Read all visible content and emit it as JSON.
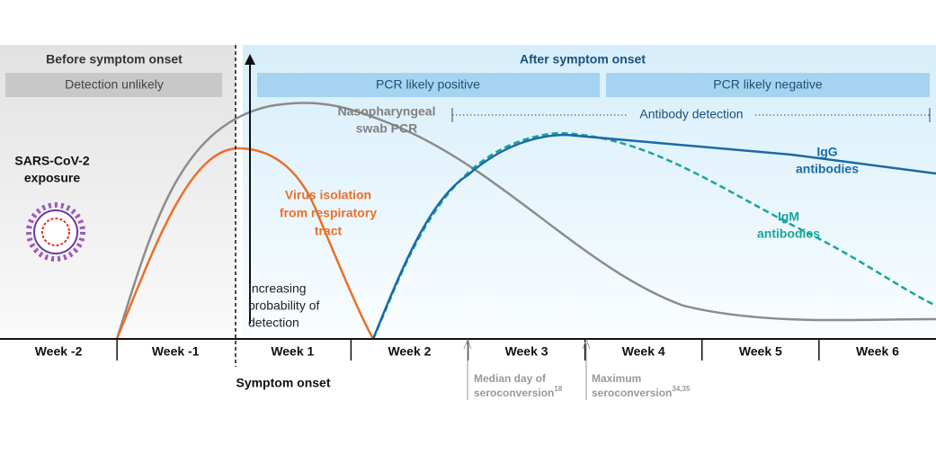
{
  "header": {
    "before": {
      "title": "Before symptom onset",
      "band": "Detection unlikely"
    },
    "after": {
      "title": "After symptom onset",
      "bands": [
        "PCR likely positive",
        "PCR likely negative"
      ],
      "antibody": "Antibody detection"
    }
  },
  "exposure": [
    "SARS-CoV-2",
    "exposure"
  ],
  "probability": [
    "Increasing",
    "probability of",
    "detection"
  ],
  "curves": {
    "pcr": [
      "Nasopharyngeal",
      "swab PCR"
    ],
    "virus": [
      "Virus isolation",
      "from respiratory",
      "tract"
    ],
    "igg": [
      "IgG",
      "antibodies"
    ],
    "igm": [
      "IgM",
      "antibodies"
    ]
  },
  "weeks": [
    "Week -2",
    "Week -1",
    "Week 1",
    "Week 2",
    "Week 3",
    "Week 4",
    "Week 5",
    "Week 6"
  ],
  "symptom_onset": "Symptom onset",
  "notes": {
    "median": {
      "lines": [
        "Median day of",
        "seroconversion"
      ],
      "ref": "18"
    },
    "maximum": {
      "lines": [
        "Maximum",
        "seroconversion"
      ],
      "ref": "34,35"
    }
  }
}
